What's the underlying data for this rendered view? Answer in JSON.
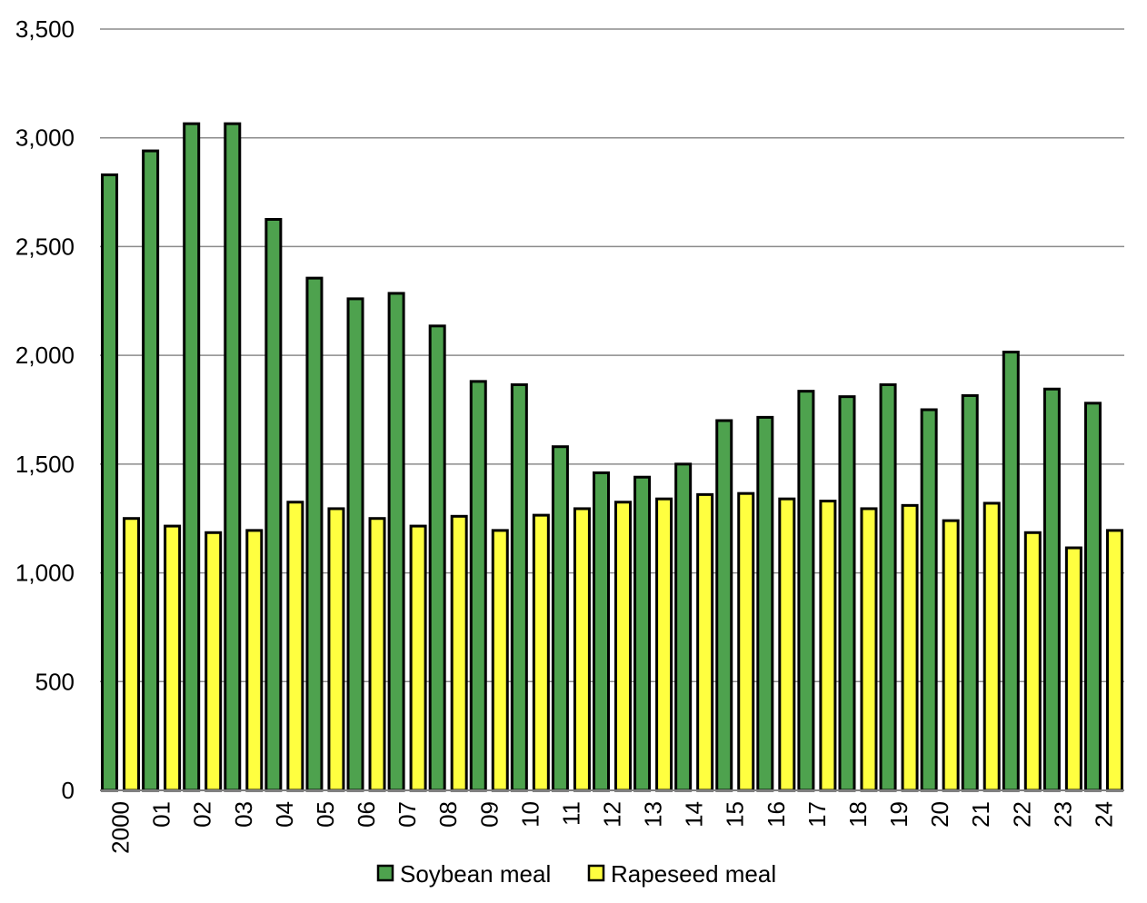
{
  "chart_data": {
    "type": "bar",
    "title": "",
    "xlabel": "",
    "ylabel": "",
    "ylim": [
      0,
      3500
    ],
    "yticks": [
      0,
      500,
      1000,
      1500,
      2000,
      2500,
      3000,
      3500
    ],
    "ytick_labels": [
      "0",
      "500",
      "1,000",
      "1,500",
      "2,000",
      "2,500",
      "3,000",
      "3,500"
    ],
    "grid": true,
    "legend_position": "bottom-center",
    "categories": [
      "2000",
      "01",
      "02",
      "03",
      "04",
      "05",
      "06",
      "07",
      "08",
      "09",
      "10",
      "11",
      "12",
      "13",
      "14",
      "15",
      "16",
      "17",
      "18",
      "19",
      "20",
      "21",
      "22",
      "23",
      "24"
    ],
    "series": [
      {
        "name": "Soybean meal",
        "color": "#4ea24e",
        "values": [
          2830,
          2940,
          3065,
          3065,
          2625,
          2355,
          2260,
          2285,
          2135,
          1880,
          1865,
          1580,
          1460,
          1440,
          1500,
          1700,
          1715,
          1835,
          1810,
          1865,
          1750,
          1815,
          2015,
          1845,
          1780
        ]
      },
      {
        "name": "Rapeseed meal",
        "color": "#ffff40",
        "values": [
          1250,
          1215,
          1185,
          1195,
          1325,
          1295,
          1250,
          1215,
          1260,
          1195,
          1265,
          1295,
          1325,
          1340,
          1360,
          1365,
          1340,
          1330,
          1295,
          1310,
          1240,
          1320,
          1185,
          1115,
          1195
        ]
      }
    ]
  }
}
